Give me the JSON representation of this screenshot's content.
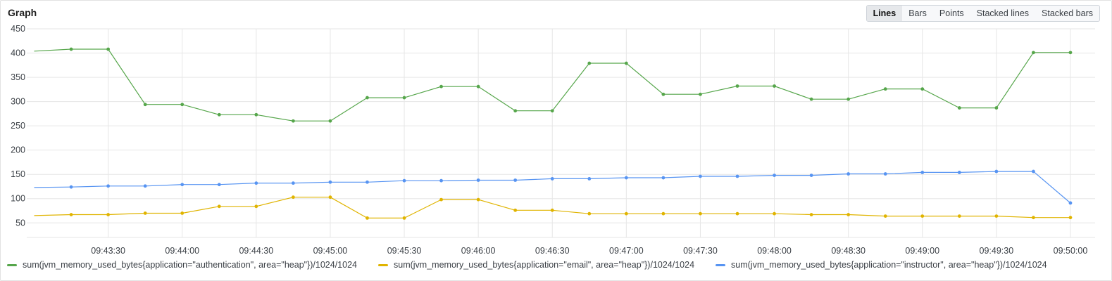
{
  "panel": {
    "title": "Graph",
    "modes": [
      "Lines",
      "Bars",
      "Points",
      "Stacked lines",
      "Stacked bars"
    ],
    "active_mode": "Lines"
  },
  "chart_data": {
    "type": "line",
    "title": "",
    "xlabel": "",
    "ylabel": "",
    "ylim": [
      20,
      450
    ],
    "yticks": [
      50,
      100,
      150,
      200,
      250,
      300,
      350,
      400,
      450
    ],
    "xticks": [
      "09:43:30",
      "09:44:00",
      "09:44:30",
      "09:45:00",
      "09:45:30",
      "09:46:00",
      "09:46:30",
      "09:47:00",
      "09:47:30",
      "09:48:00",
      "09:48:30",
      "09:49:00",
      "09:49:30",
      "09:50:00"
    ],
    "x": [
      "09:43:00",
      "09:43:15",
      "09:43:30",
      "09:43:45",
      "09:44:00",
      "09:44:15",
      "09:44:30",
      "09:44:45",
      "09:45:00",
      "09:45:15",
      "09:45:30",
      "09:45:45",
      "09:46:00",
      "09:46:15",
      "09:46:30",
      "09:46:45",
      "09:47:00",
      "09:47:15",
      "09:47:30",
      "09:47:45",
      "09:48:00",
      "09:48:15",
      "09:48:30",
      "09:48:45",
      "09:49:00",
      "09:49:15",
      "09:49:30",
      "09:49:45",
      "09:50:00"
    ],
    "grid": true,
    "legend_position": "bottom",
    "series": [
      {
        "name": "sum(jvm_memory_used_bytes{application=\"authentication\", area=\"heap\"})/1024/1024",
        "color": "#56a64b",
        "values": [
          404,
          408,
          408,
          294,
          294,
          273,
          273,
          260,
          260,
          308,
          308,
          331,
          331,
          281,
          281,
          379,
          379,
          315,
          315,
          332,
          332,
          305,
          305,
          326,
          326,
          287,
          287,
          401,
          401
        ]
      },
      {
        "name": "sum(jvm_memory_used_bytes{application=\"email\", area=\"heap\"})/1024/1024",
        "color": "#e0b400",
        "values": [
          65,
          67,
          67,
          70,
          70,
          84,
          84,
          103,
          103,
          60,
          60,
          98,
          98,
          76,
          76,
          69,
          69,
          69,
          69,
          69,
          69,
          67,
          67,
          64,
          64,
          64,
          64,
          61,
          61
        ]
      },
      {
        "name": "sum(jvm_memory_used_bytes{application=\"instructor\", area=\"heap\"})/1024/1024",
        "color": "#5794f2",
        "values": [
          123,
          124,
          126,
          126,
          129,
          129,
          132,
          132,
          134,
          134,
          137,
          137,
          138,
          138,
          141,
          141,
          143,
          143,
          146,
          146,
          148,
          148,
          151,
          151,
          154,
          154,
          156,
          156,
          91
        ]
      }
    ]
  }
}
